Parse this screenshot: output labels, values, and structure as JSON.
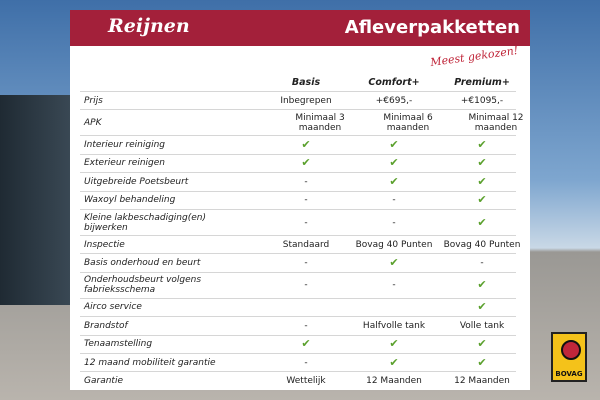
{
  "header": {
    "logo": "Reijnen",
    "title": "Afleverpakketten"
  },
  "annotation": "Meest gekozen!",
  "table": {
    "columns": [
      "Basis",
      "Comfort+",
      "Premium+"
    ],
    "rows": [
      {
        "label": "Prijs",
        "cells": [
          "Inbegrepen",
          "+€695,-",
          "+€1095,-"
        ]
      },
      {
        "label": "APK",
        "cells": [
          "Minimaal 3 maanden",
          "Minimaal 6 maanden",
          "Minimaal 12 maanden"
        ]
      },
      {
        "label": "Interieur reiniging",
        "cells": [
          "✔",
          "✔",
          "✔"
        ]
      },
      {
        "label": "Exterieur reinigen",
        "cells": [
          "✔",
          "✔",
          "✔"
        ]
      },
      {
        "label": "Uitgebreide Poetsbeurt",
        "cells": [
          "-",
          "✔",
          "✔"
        ]
      },
      {
        "label": "Waxoyl behandeling",
        "cells": [
          "-",
          "-",
          "✔"
        ]
      },
      {
        "label": "Kleine lakbeschadiging(en) bijwerken",
        "cells": [
          "-",
          "-",
          "✔"
        ]
      },
      {
        "label": "Inspectie",
        "cells": [
          "Standaard",
          "Bovag 40 Punten",
          "Bovag 40 Punten"
        ]
      },
      {
        "label": "Basis onderhoud en beurt",
        "cells": [
          "-",
          "✔",
          "-"
        ]
      },
      {
        "label": "Onderhoudsbeurt volgens fabrieksschema",
        "cells": [
          "-",
          "-",
          "✔"
        ]
      },
      {
        "label": "Airco service",
        "cells": [
          null,
          null,
          "✔"
        ]
      },
      {
        "label": "Brandstof",
        "cells": [
          "-",
          "Halfvolle tank",
          "Volle tank"
        ]
      },
      {
        "label": "Tenaamstelling",
        "cells": [
          "✔",
          "✔",
          "✔"
        ]
      },
      {
        "label": "12 maand mobiliteit garantie",
        "cells": [
          "-",
          "✔",
          "✔"
        ]
      },
      {
        "label": "Garantie",
        "cells": [
          "Wettelijk",
          "12 Maanden",
          "12 Maanden"
        ]
      }
    ]
  },
  "badge": "BOVAG"
}
